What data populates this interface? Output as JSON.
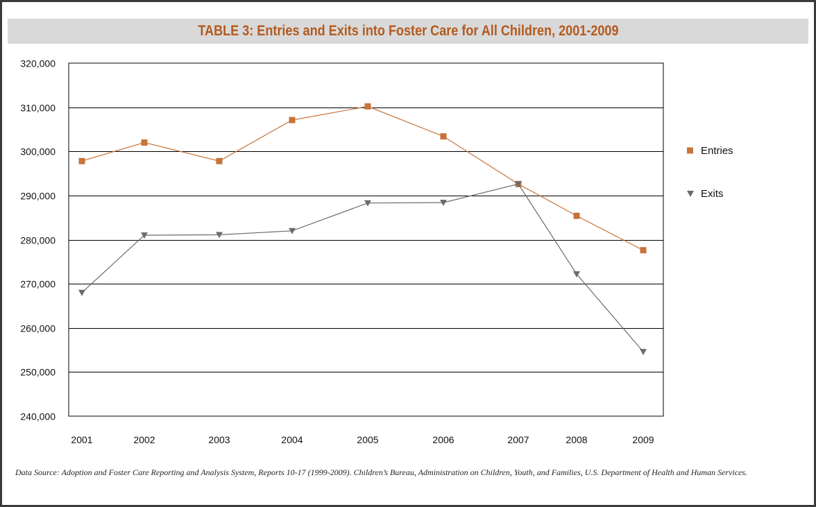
{
  "title": "TABLE 3:  Entries and Exits into Foster Care for All Children, 2001-2009",
  "source_note": "Data Source: Adoption and Foster Care Reporting and Analysis System, Reports 10-17 (1999-2009).  Children’s Bureau, Administration on Children, Youth, and Families, U.S. Department of Health and Human Services.",
  "colors": {
    "title": "#b35a1f",
    "title_bar": "#d9d9d9",
    "entries": "#c8733a",
    "exits": "#6b6b6b"
  },
  "chart_data": {
    "type": "line",
    "title": "TABLE 3:  Entries and Exits into Foster Care for All Children, 2001-2009",
    "xlabel": "",
    "ylabel": "",
    "x": [
      "2001",
      "2002",
      "2003",
      "2004",
      "2005",
      "2006",
      "2007",
      "2008",
      "2009"
    ],
    "ylim": [
      240000,
      320000
    ],
    "yticks": [
      240000,
      250000,
      260000,
      270000,
      280000,
      290000,
      300000,
      310000,
      320000
    ],
    "ytick_labels": [
      "240,000",
      "250,000",
      "260,000",
      "270,000",
      "280,000",
      "290,000",
      "300,000",
      "310,000",
      "320,000"
    ],
    "grid": true,
    "legend_position": "right",
    "series": [
      {
        "name": "Entries",
        "marker": "square",
        "values": [
          297800,
          302000,
          297800,
          307100,
          310200,
          303400,
          292600,
          285400,
          277600
        ]
      },
      {
        "name": "Exits",
        "marker": "triangle-down",
        "values": [
          268000,
          281000,
          281100,
          282000,
          288300,
          288400,
          292600,
          272200,
          254600
        ]
      }
    ]
  }
}
